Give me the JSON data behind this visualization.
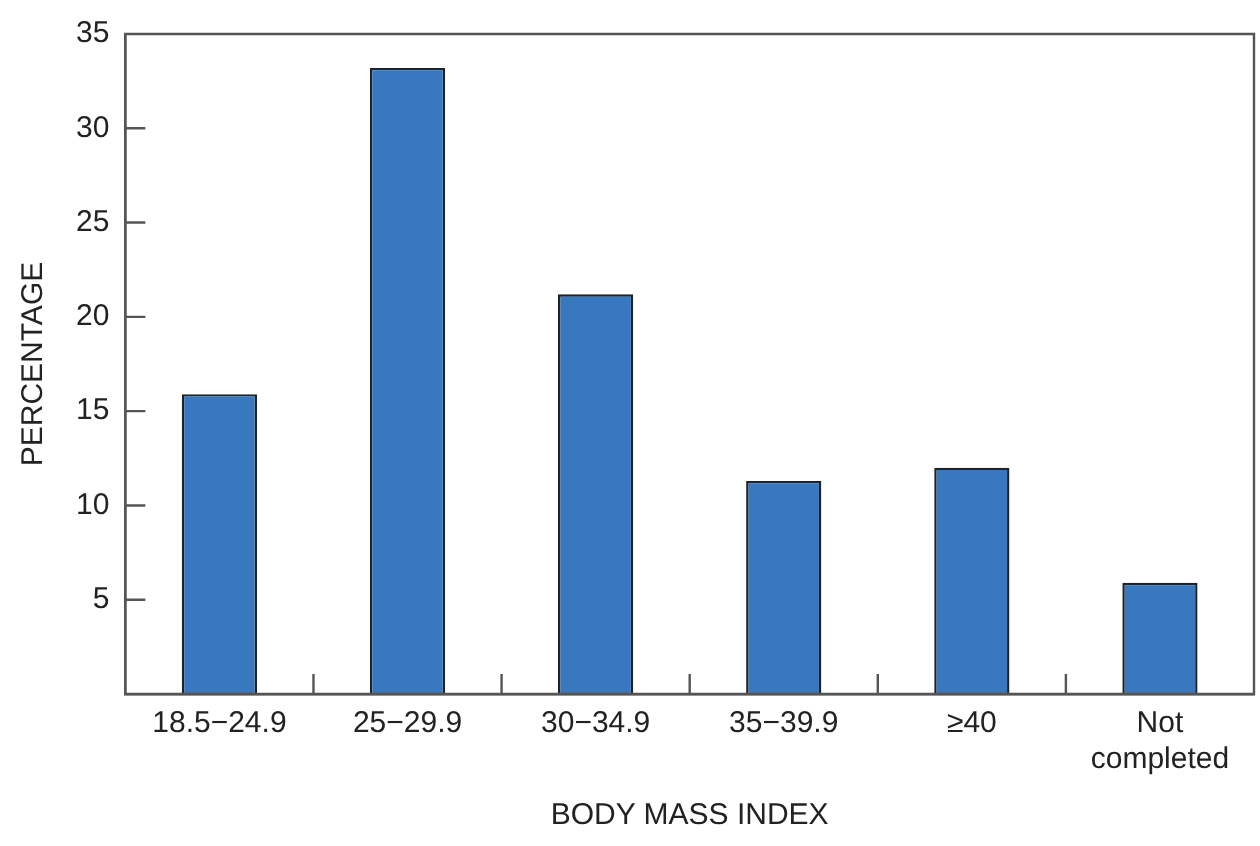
{
  "chart_data": {
    "type": "bar",
    "xlabel": "BODY MASS INDEX",
    "ylabel": "PERCENTAGE",
    "categories": [
      "18.5−24.9",
      "25−29.9",
      "30−34.9",
      "35−39.9",
      "≥40",
      "Not completed"
    ],
    "values": [
      15.9,
      33.2,
      21.2,
      11.3,
      12.0,
      5.9
    ],
    "color": "#3778bf",
    "ylim": [
      0,
      35
    ],
    "yticks": [
      5,
      10,
      15,
      20,
      25,
      30,
      35
    ],
    "grid": false,
    "legend": false
  }
}
